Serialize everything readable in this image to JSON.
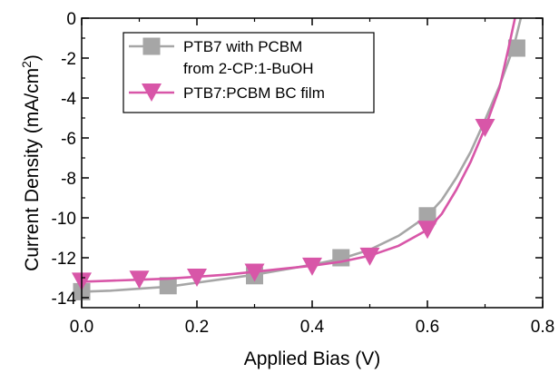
{
  "chart_data": {
    "type": "line",
    "xlabel": "Applied Bias (V)",
    "ylabel": "Current Density (mA/cm",
    "ylabel_sup": "2",
    "ylabel_close": ")",
    "xlim": [
      0,
      0.8
    ],
    "ylim": [
      -14.5,
      0
    ],
    "xticks": [
      0.0,
      0.2,
      0.4,
      0.6,
      0.8
    ],
    "xtick_labels": [
      "0.0",
      "0.2",
      "0.4",
      "0.6",
      "0.8"
    ],
    "yticks": [
      0,
      -2,
      -4,
      -6,
      -8,
      -10,
      -12,
      -14
    ],
    "ytick_labels": [
      "0",
      "-2",
      "-4",
      "-6",
      "-8",
      "-10",
      "-12",
      "-14"
    ],
    "grid": false,
    "legend_position": "top-left",
    "series": [
      {
        "name": "PTB7 with PCBM",
        "name_line2": "from 2-CP:1-BuOH",
        "color": "#a6a6a6",
        "marker": "square",
        "curve": [
          [
            0,
            -13.7
          ],
          [
            0.05,
            -13.65
          ],
          [
            0.1,
            -13.55
          ],
          [
            0.15,
            -13.45
          ],
          [
            0.2,
            -13.25
          ],
          [
            0.25,
            -13.05
          ],
          [
            0.3,
            -12.85
          ],
          [
            0.35,
            -12.6
          ],
          [
            0.4,
            -12.35
          ],
          [
            0.45,
            -12.05
          ],
          [
            0.5,
            -11.6
          ],
          [
            0.55,
            -10.9
          ],
          [
            0.6,
            -9.9
          ],
          [
            0.625,
            -9.1
          ],
          [
            0.65,
            -8.0
          ],
          [
            0.675,
            -6.7
          ],
          [
            0.7,
            -5.1
          ],
          [
            0.725,
            -3.4
          ],
          [
            0.75,
            -1.4
          ],
          [
            0.762,
            0
          ]
        ],
        "markers": [
          [
            0,
            -13.7
          ],
          [
            0.15,
            -13.4
          ],
          [
            0.3,
            -12.9
          ],
          [
            0.45,
            -12.0
          ],
          [
            0.6,
            -9.9
          ],
          [
            0.755,
            -1.5
          ]
        ]
      },
      {
        "name": "PTB7:PCBM BC film",
        "color": "#d856a8",
        "marker": "triangle-down",
        "curve": [
          [
            0,
            -13.2
          ],
          [
            0.05,
            -13.15
          ],
          [
            0.1,
            -13.1
          ],
          [
            0.15,
            -13.05
          ],
          [
            0.2,
            -12.95
          ],
          [
            0.25,
            -12.85
          ],
          [
            0.3,
            -12.7
          ],
          [
            0.35,
            -12.55
          ],
          [
            0.4,
            -12.4
          ],
          [
            0.45,
            -12.2
          ],
          [
            0.5,
            -11.9
          ],
          [
            0.55,
            -11.4
          ],
          [
            0.6,
            -10.6
          ],
          [
            0.625,
            -9.8
          ],
          [
            0.65,
            -8.6
          ],
          [
            0.675,
            -7.2
          ],
          [
            0.7,
            -5.5
          ],
          [
            0.725,
            -3.5
          ],
          [
            0.74,
            -1.6
          ],
          [
            0.752,
            0
          ]
        ],
        "markers": [
          [
            0,
            -13.2
          ],
          [
            0.1,
            -13.1
          ],
          [
            0.2,
            -13.0
          ],
          [
            0.3,
            -12.75
          ],
          [
            0.4,
            -12.45
          ],
          [
            0.5,
            -11.95
          ],
          [
            0.6,
            -10.6
          ],
          [
            0.7,
            -5.5
          ]
        ]
      }
    ]
  }
}
